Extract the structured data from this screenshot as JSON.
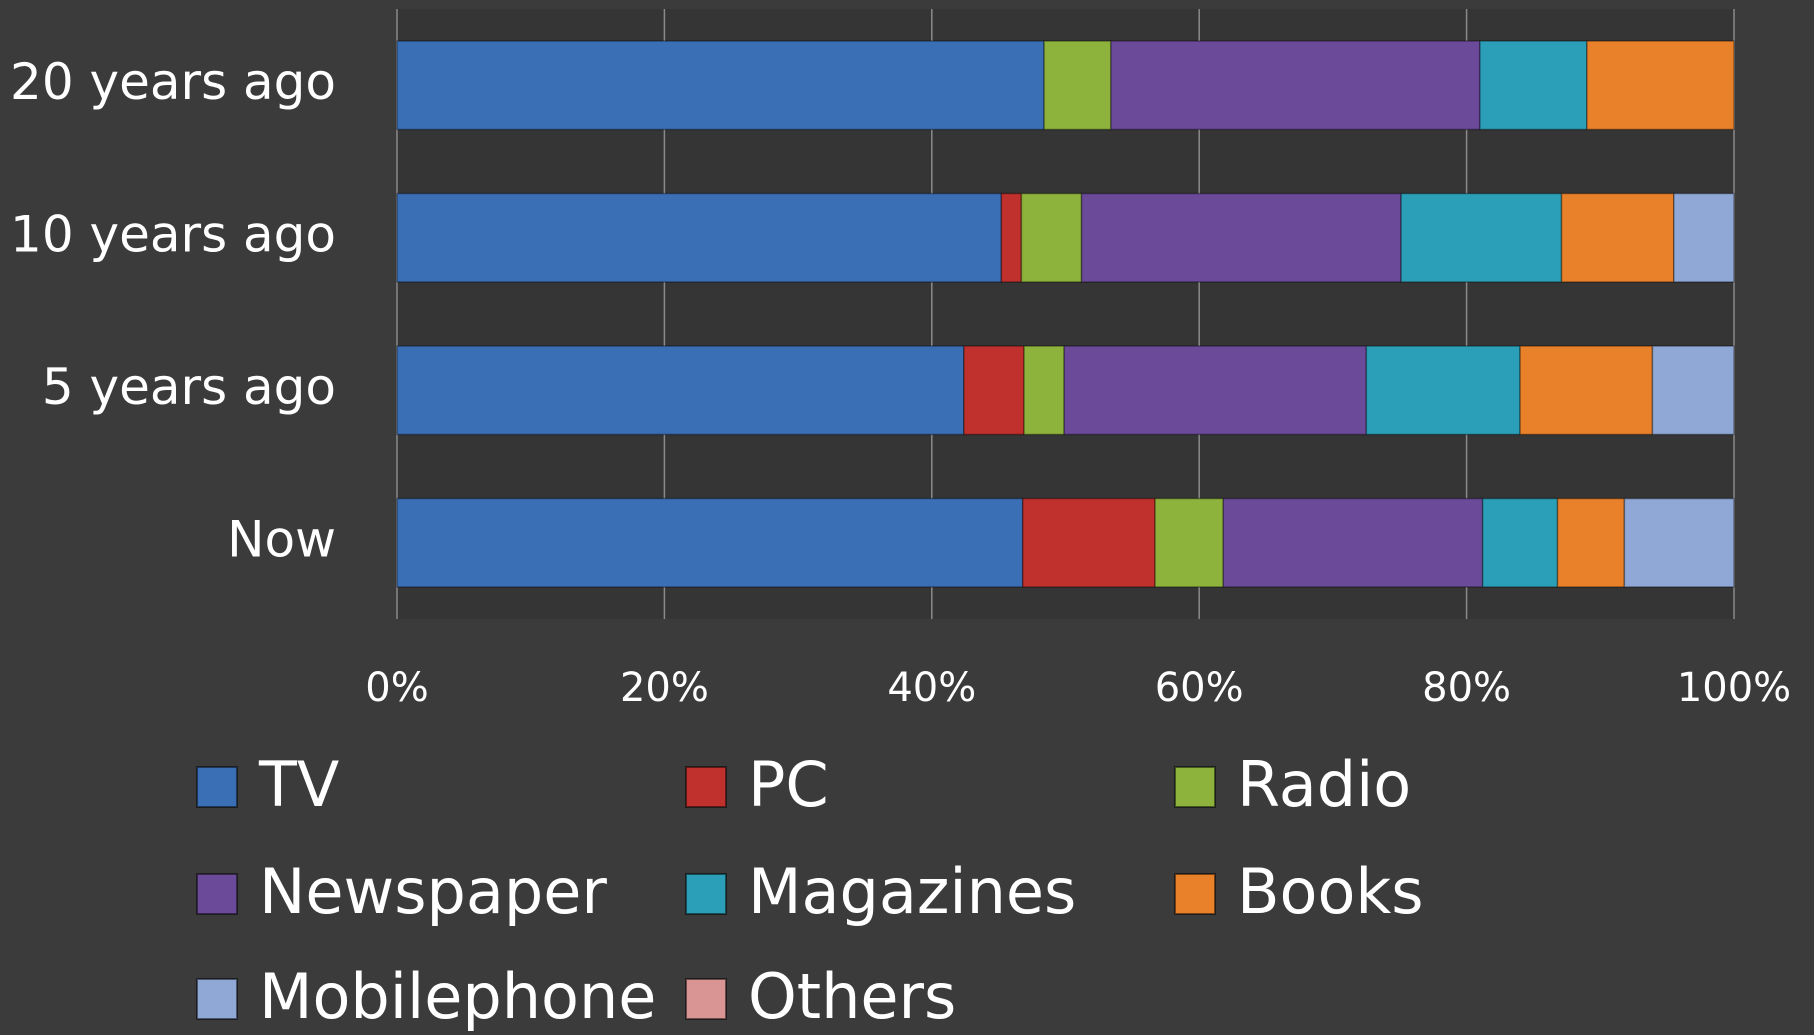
{
  "chart_data": {
    "type": "stacked-bar-horizontal",
    "categories": [
      "20 years ago",
      "10 years ago",
      "5 years ago",
      "Now"
    ],
    "series": [
      {
        "name": "TV",
        "color": "#3a6fb6",
        "values": [
          48.4,
          45.2,
          42.4,
          46.8
        ]
      },
      {
        "name": "PC",
        "color": "#c0302c",
        "values": [
          0,
          1.5,
          4.5,
          9.9
        ]
      },
      {
        "name": "Radio",
        "color": "#8db33c",
        "values": [
          5,
          4.5,
          3,
          5.1
        ]
      },
      {
        "name": "Newspaper",
        "color": "#6b4a9a",
        "values": [
          27.6,
          23.9,
          22.6,
          19.4
        ]
      },
      {
        "name": "Magazines",
        "color": "#2c9fb8",
        "values": [
          8,
          12,
          11.5,
          5.6
        ]
      },
      {
        "name": "Books",
        "color": "#e9802a",
        "values": [
          11,
          8.4,
          9.9,
          5
        ]
      },
      {
        "name": "Mobilephone",
        "color": "#8fa8d6",
        "values": [
          0,
          4.5,
          6.1,
          8.2
        ]
      },
      {
        "name": "Others",
        "color": "#d99594",
        "values": [
          0,
          0,
          0,
          0
        ]
      }
    ],
    "xlim": [
      0,
      100
    ],
    "xticks": [
      {
        "value": 0,
        "label": "0%"
      },
      {
        "value": 20,
        "label": "20%"
      },
      {
        "value": 40,
        "label": "40%"
      },
      {
        "value": 60,
        "label": "60%"
      },
      {
        "value": 80,
        "label": "80%"
      },
      {
        "value": 100,
        "label": "100%"
      }
    ],
    "grid": true
  }
}
